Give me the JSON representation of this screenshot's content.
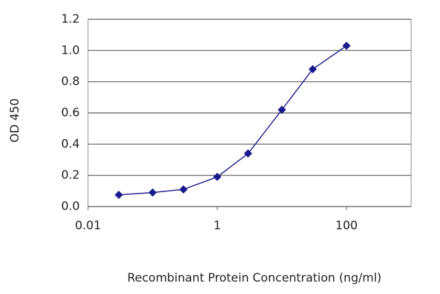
{
  "chart_data": {
    "type": "line",
    "x_label": "Recombinant Protein Concentration (ng/ml)",
    "y_label": "OD 450",
    "x": [
      0.03,
      0.1,
      0.3,
      1,
      3,
      10,
      30,
      100
    ],
    "series": [
      {
        "color": "#1a1a8c",
        "values": [
          0.075,
          0.09,
          0.11,
          0.19,
          0.34,
          0.62,
          0.88,
          1.03
        ]
      }
    ],
    "xlim": [
      0.01,
      1000
    ],
    "xticks": [
      0.01,
      1,
      100
    ],
    "x_log": true,
    "ylim": [
      0,
      1.2
    ],
    "yticks": [
      {
        "value": 0,
        "label": "0.0"
      },
      {
        "value": 0.2,
        "label": "0.2"
      },
      {
        "value": 0.4,
        "label": "0.4"
      },
      {
        "value": 0.6,
        "label": "0.6"
      },
      {
        "value": 0.8,
        "label": "0.8"
      },
      {
        "value": 1.0,
        "label": "1.0"
      },
      {
        "value": 1.2,
        "label": "1.2"
      }
    ],
    "grid": true
  }
}
